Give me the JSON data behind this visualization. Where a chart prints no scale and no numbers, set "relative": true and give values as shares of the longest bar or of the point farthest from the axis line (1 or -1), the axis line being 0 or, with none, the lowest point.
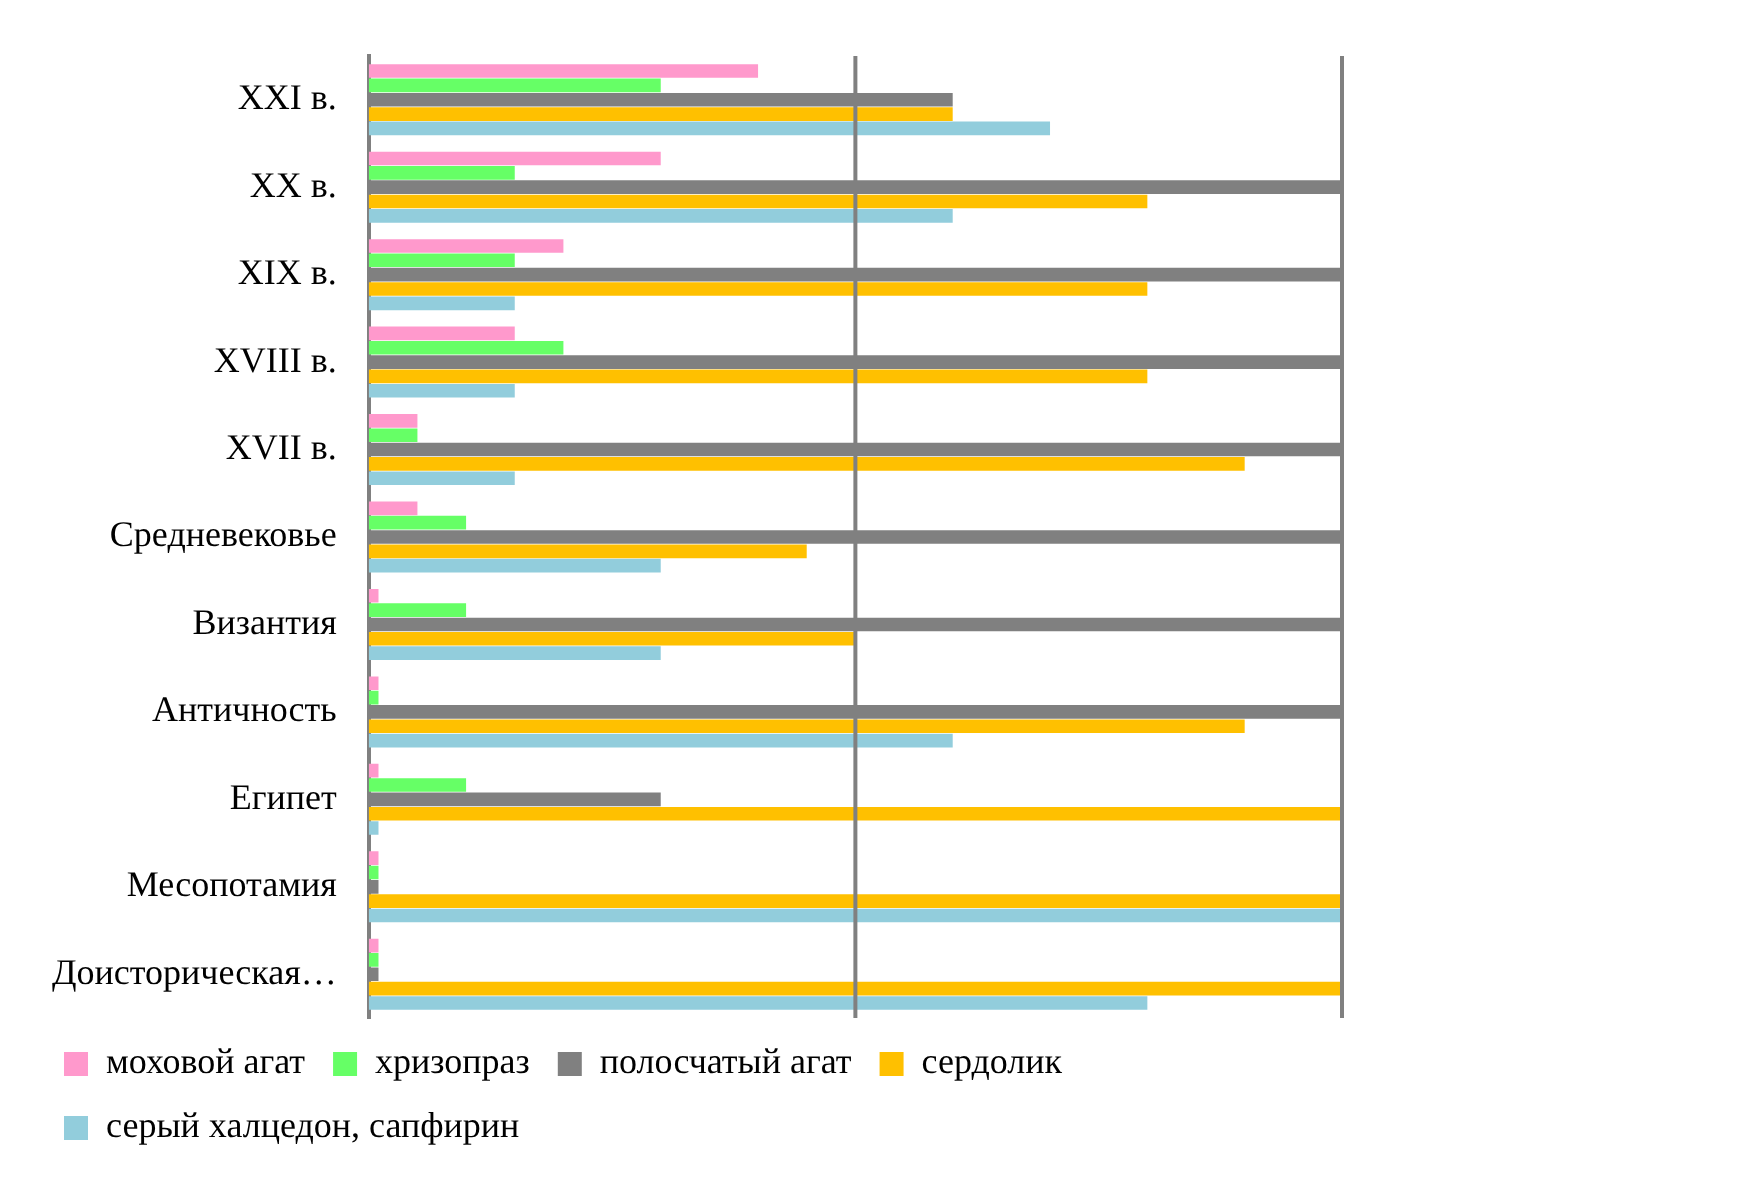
{
  "chart_data": {
    "type": "bar",
    "orientation": "horizontal",
    "relative": true,
    "legend": "bottom",
    "ref_lines": [
      {
        "axis": "x",
        "value": 0.5,
        "color": "#808080"
      },
      {
        "axis": "x",
        "value": 1,
        "color": "#808080"
      }
    ],
    "categories": [
      "XXI в.",
      "XX в.",
      "XIX в.",
      "XVIII в.",
      "XVII в.",
      "Средневековье",
      "Византия",
      "Античность",
      "Египет",
      "Месопотамия",
      "Доисторическая…"
    ],
    "series": [
      {
        "name": "моховой агат",
        "color": "#ff99cc",
        "values": [
          0.4,
          0.3,
          0.2,
          0.15,
          0.05,
          0.05,
          0.01,
          0.01,
          0.01,
          0.01,
          0.01
        ]
      },
      {
        "name": "хризопраз",
        "color": "#66ff66",
        "values": [
          0.3,
          0.15,
          0.15,
          0.2,
          0.05,
          0.1,
          0.1,
          0.01,
          0.1,
          0.01,
          0.01
        ]
      },
      {
        "name": "полосчатый агат",
        "color": "#808080",
        "values": [
          0.6,
          1,
          1,
          1,
          1,
          1,
          1,
          1,
          0.3,
          0.01,
          0.01
        ]
      },
      {
        "name": "сердолик",
        "color": "#ffc000",
        "values": [
          0.6,
          0.8,
          0.8,
          0.8,
          0.9,
          0.45,
          0.5,
          0.9,
          1,
          1,
          1
        ]
      },
      {
        "name": "серый халцедон, сапфирин",
        "color": "#92cddc",
        "values": [
          0.7,
          0.6,
          0.15,
          0.15,
          0.15,
          0.3,
          0.3,
          0.6,
          0.01,
          1,
          0.8
        ]
      }
    ]
  }
}
